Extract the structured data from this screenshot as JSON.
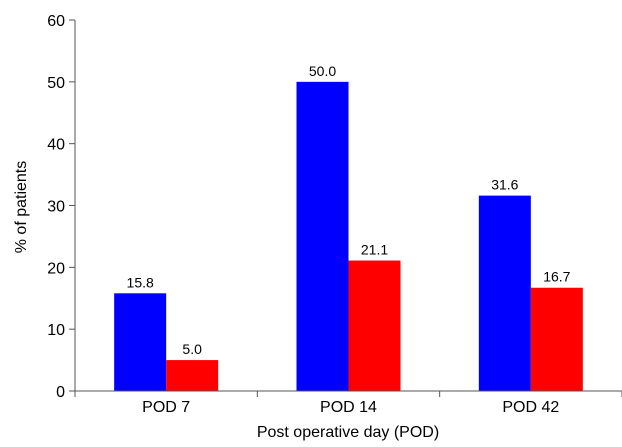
{
  "chart_data": {
    "type": "bar",
    "categories": [
      "POD 7",
      "POD 14",
      "POD 42"
    ],
    "series": [
      {
        "values": [
          15.8,
          50.0,
          31.6
        ],
        "labels": [
          "15.8",
          "50.0",
          "31.6"
        ]
      },
      {
        "values": [
          5.0,
          21.1,
          16.7
        ],
        "labels": [
          "5.0",
          "21.1",
          "16.7"
        ]
      }
    ],
    "colors": [
      "#0000ff",
      "#ff0000"
    ],
    "ylim": [
      0,
      60
    ],
    "yticks": [
      "0",
      "10",
      "20",
      "30",
      "40",
      "50",
      "60"
    ],
    "xlabel": "Post operative day (POD)",
    "ylabel": "% of patients",
    "title": "",
    "grid": false,
    "legend": "none"
  }
}
